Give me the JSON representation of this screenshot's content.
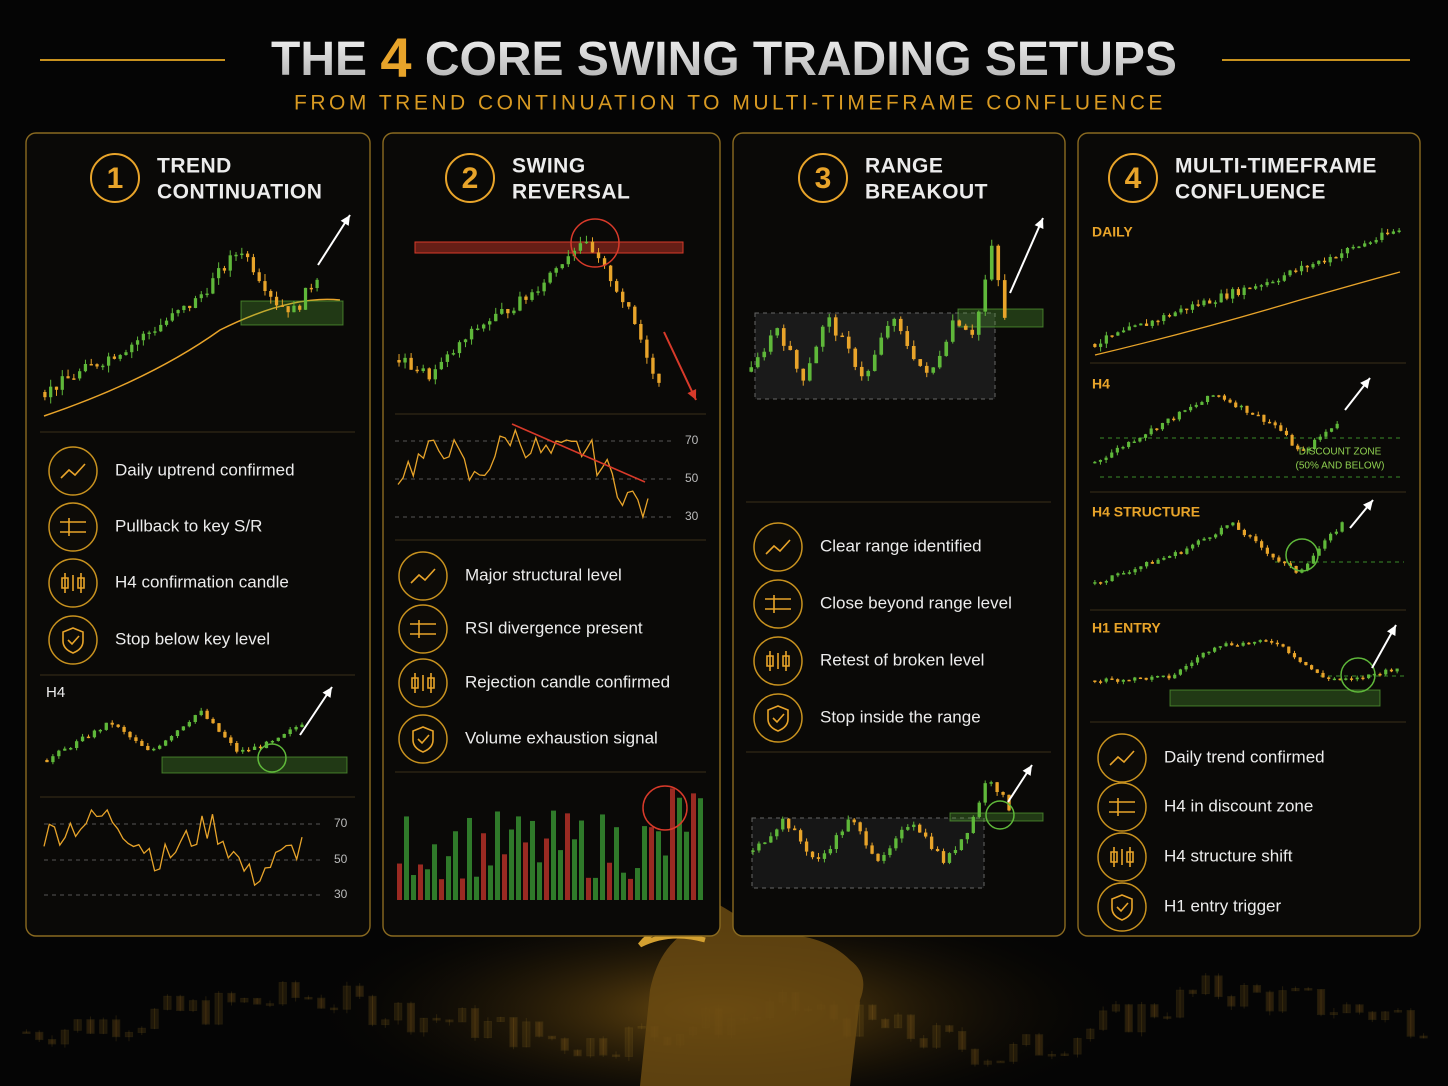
{
  "header": {
    "title_pre": "THE",
    "title_num": "4",
    "title_post": "CORE SWING TRADING SETUPS",
    "subtitle": "FROM TREND CONTINUATION TO MULTI-TIMEFRAME CONFLUENCE"
  },
  "panels": [
    {
      "number": "1",
      "title": [
        "TREND",
        "CONTINUATION"
      ],
      "items": [
        "Daily uptrend confirmed",
        "Pullback to key S/R",
        "H4 confirmation candle",
        "Stop below key level"
      ],
      "chart_label": "H4",
      "rsi_levels": [
        70,
        50,
        30
      ]
    },
    {
      "number": "2",
      "title": [
        "SWING",
        "REVERSAL"
      ],
      "rsi_levels": [
        70,
        50,
        30
      ],
      "items": [
        "Major structural level",
        "RSI divergence present",
        "Rejection candle confirmed",
        "Volume exhaustion signal"
      ]
    },
    {
      "number": "3",
      "title": [
        "RANGE",
        "BREAKOUT"
      ],
      "items": [
        "Clear range identified",
        "Close beyond range level",
        "Retest of broken level",
        "Stop inside the range"
      ]
    },
    {
      "number": "4",
      "title": [
        "MULTI-TIMEFRAME",
        "CONFLUENCE"
      ],
      "chart_labels": [
        "DAILY",
        "H4",
        "H4 STRUCTURE",
        "H1 ENTRY"
      ],
      "discount_zone": [
        "DISCOUNT ZONE",
        "(50% AND BELOW)"
      ],
      "items": [
        "Daily trend confirmed",
        "H4 in discount zone",
        "H4 structure shift",
        "H1 entry trigger"
      ]
    }
  ]
}
